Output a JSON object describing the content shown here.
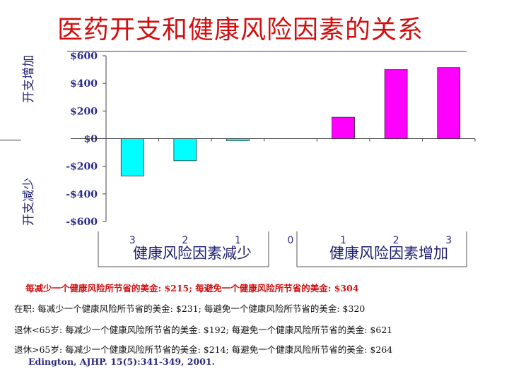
{
  "title": "医药开支和健康风险因素的关系",
  "chart_data": {
    "type": "bar",
    "categories": [
      "3",
      "2",
      "1",
      "0",
      "1",
      "2",
      "3"
    ],
    "values": [
      -270,
      -160,
      -15,
      0,
      155,
      500,
      515
    ],
    "bar_colors": [
      "#00ffff",
      "#00ffff",
      "#00ffff",
      "#ffffff",
      "#ff00ff",
      "#ff00ff",
      "#ff00ff"
    ],
    "yticks": [
      "$600",
      "$400",
      "$200",
      "$0",
      "-$200",
      "-$400",
      "-$600"
    ],
    "ylim": [
      -600,
      600
    ],
    "ylabel_top": "开支增加",
    "ylabel_bottom": "开支减少",
    "group_left": "健康风险因素减少",
    "group_right": "健康风险因素增加"
  },
  "notes": {
    "line1": "每减少一个健康风险所节省的美金: $215; 每避免一个健康风险所节省的美金: $304",
    "line2": "在职: 每减少一个健康风险所节省的美金: $231; 每避免一个健康风险所节省的美金: $320",
    "line3": "退休<65岁: 每减少一个健康风险所节省的美金: $192; 每避免一个健康风险所节省的美金: $621",
    "line4": "退休>65岁: 每减少一个健康风险所节省的美金: $214; 每避免一个健康风险所节省的美金: $264",
    "citation": "Edington, AJHP. 15(5):341-349, 2001."
  }
}
